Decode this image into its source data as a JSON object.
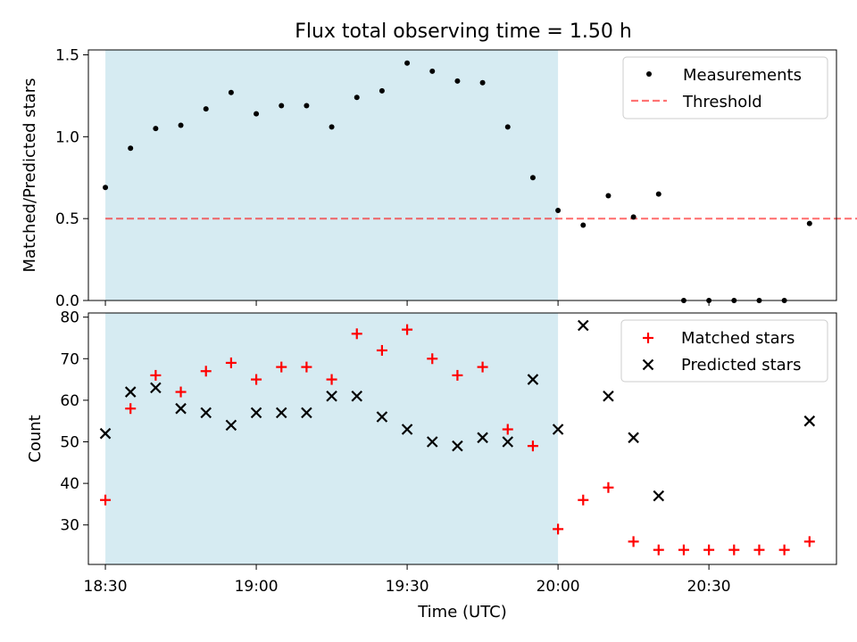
{
  "title": "Flux total observing time = 1.50 h",
  "colors": {
    "shade": "#add8e6",
    "measurement": "#000000",
    "threshold": "#ff0000",
    "matched": "#ff0000",
    "predicted": "#000000"
  },
  "chart_data": [
    {
      "type": "scatter",
      "ylabel": "Matched/Predicted stars",
      "ylim": [
        0,
        1.53
      ],
      "yticks": [
        0.0,
        0.5,
        1.0,
        1.5
      ],
      "ytick_labels": [
        "0.0",
        "0.5",
        "1.0",
        "1.5"
      ],
      "shaded_span": [
        "18:30",
        "20:00"
      ],
      "legend_position": "top-right",
      "threshold": {
        "name": "Threshold",
        "value": 0.5,
        "x_range": [
          "18:30",
          "21:10"
        ]
      },
      "series": [
        {
          "name": "Measurements",
          "x": [
            "18:30",
            "18:35",
            "18:40",
            "18:45",
            "18:50",
            "18:55",
            "19:00",
            "19:05",
            "19:10",
            "19:15",
            "19:20",
            "19:25",
            "19:30",
            "19:35",
            "19:40",
            "19:45",
            "19:50",
            "19:55",
            "20:00",
            "20:05",
            "20:10",
            "20:15",
            "20:20",
            "20:25",
            "20:30",
            "20:35",
            "20:40",
            "20:45",
            "20:50"
          ],
          "y": [
            0.69,
            0.93,
            1.05,
            1.07,
            1.17,
            1.27,
            1.14,
            1.19,
            1.19,
            1.06,
            1.24,
            1.28,
            1.45,
            1.4,
            1.34,
            1.33,
            1.06,
            0.75,
            0.55,
            0.46,
            0.64,
            0.51,
            0.65,
            0.0,
            0.0,
            0.0,
            0.0,
            0.0,
            0.47
          ]
        }
      ]
    },
    {
      "type": "scatter",
      "xlabel": "Time (UTC)",
      "ylabel": "Count",
      "ylim": [
        20.5,
        81
      ],
      "yticks": [
        30,
        40,
        50,
        60,
        70,
        80
      ],
      "ytick_labels": [
        "30",
        "40",
        "50",
        "60",
        "70",
        "80"
      ],
      "xticks": [
        "18:30",
        "19:00",
        "19:30",
        "20:00",
        "20:30"
      ],
      "shaded_span": [
        "18:30",
        "20:00"
      ],
      "legend_position": "top-right",
      "series": [
        {
          "name": "Matched stars",
          "marker": "+",
          "x": [
            "18:30",
            "18:35",
            "18:40",
            "18:45",
            "18:50",
            "18:55",
            "19:00",
            "19:05",
            "19:10",
            "19:15",
            "19:20",
            "19:25",
            "19:30",
            "19:35",
            "19:40",
            "19:45",
            "19:50",
            "19:55",
            "20:00",
            "20:05",
            "20:10",
            "20:15",
            "20:20",
            "20:25",
            "20:30",
            "20:35",
            "20:40",
            "20:45",
            "20:50"
          ],
          "y": [
            36,
            58,
            66,
            62,
            67,
            69,
            65,
            68,
            68,
            65,
            76,
            72,
            77,
            70,
            66,
            68,
            53,
            49,
            29,
            36,
            39,
            26,
            24,
            24,
            24,
            24,
            24,
            24,
            26
          ]
        },
        {
          "name": "Predicted stars",
          "marker": "x",
          "x": [
            "18:30",
            "18:35",
            "18:40",
            "18:45",
            "18:50",
            "18:55",
            "19:00",
            "19:05",
            "19:10",
            "19:15",
            "19:20",
            "19:25",
            "19:30",
            "19:35",
            "19:40",
            "19:45",
            "19:50",
            "19:55",
            "20:00",
            "20:05",
            "20:10",
            "20:15",
            "20:20",
            "20:50"
          ],
          "y": [
            52,
            62,
            63,
            58,
            57,
            54,
            57,
            57,
            57,
            61,
            61,
            56,
            53,
            50,
            49,
            51,
            50,
            65,
            53,
            78,
            61,
            51,
            37,
            55
          ]
        }
      ]
    }
  ]
}
